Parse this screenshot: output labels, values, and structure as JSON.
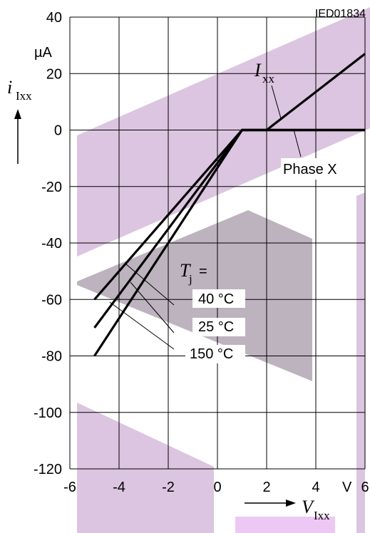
{
  "figure_code": "IED01834",
  "colors": {
    "line": "#000000",
    "grid": "#000000",
    "watermark_purple": "#c9a6cf",
    "watermark_gray": "#a79aa8"
  },
  "y_axis": {
    "symbol": "i",
    "subscript": "Ixx",
    "unit": "µA"
  },
  "x_axis": {
    "symbol": "V",
    "subscript": "Ixx",
    "unit": "V"
  },
  "annotations": {
    "ixx_symbol": "I",
    "ixx_subscript": "xx",
    "phase": "Phase X",
    "tj_symbol": "T",
    "tj_subscript": "j",
    "tj_equals": "=",
    "temp_40": "40 °C",
    "temp_25": "25 °C",
    "temp_150": "150 °C"
  },
  "chart_data": {
    "type": "line",
    "xlabel": "V Ixx",
    "ylabel": "i Ixx",
    "xlim": [
      -6,
      6
    ],
    "ylim": [
      -120,
      40
    ],
    "x_ticks": [
      -6,
      -4,
      -2,
      0,
      2,
      4,
      6
    ],
    "x_tick_labels": [
      "-6",
      "-4",
      "-2",
      "0",
      "2",
      "4",
      "6"
    ],
    "y_ticks": [
      40,
      20,
      0,
      -20,
      -40,
      -60,
      -80,
      -100,
      -120
    ],
    "y_tick_labels": [
      "40",
      "20",
      "0",
      "-20",
      "-40",
      "-60",
      "-80",
      "-100",
      "-120"
    ],
    "grid": true,
    "series": [
      {
        "name": "40 °C",
        "points": [
          [
            -5,
            -60
          ],
          [
            1,
            0
          ],
          [
            6,
            0
          ]
        ]
      },
      {
        "name": "25 °C",
        "points": [
          [
            -5,
            -70
          ],
          [
            1,
            0
          ],
          [
            6,
            0
          ]
        ]
      },
      {
        "name": "150 °C",
        "points": [
          [
            -5,
            -80
          ],
          [
            1,
            0
          ],
          [
            6,
            0
          ]
        ]
      },
      {
        "name": "Ixx",
        "points": [
          [
            1,
            0
          ],
          [
            2,
            0
          ],
          [
            6,
            27
          ]
        ]
      }
    ]
  }
}
